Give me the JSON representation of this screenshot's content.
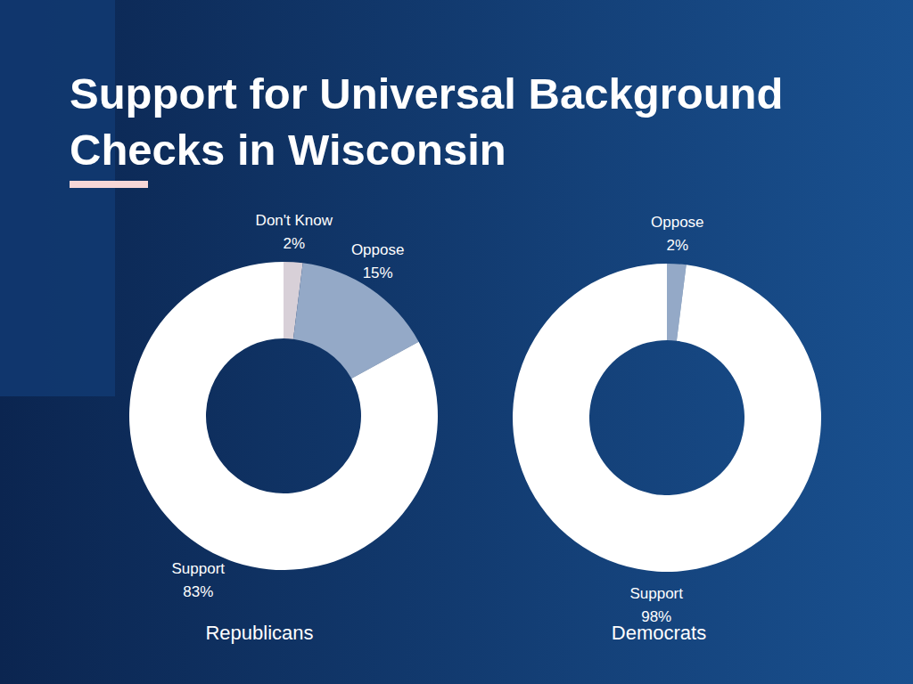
{
  "title": "Support for Universal Background Checks in Wisconsin",
  "chart_data": [
    {
      "type": "pie",
      "title": "Republicans",
      "categories": [
        "Don't Know",
        "Oppose",
        "Support"
      ],
      "values": [
        2,
        15,
        83
      ],
      "value_labels": [
        "2%",
        "15%",
        "83%"
      ],
      "colors": [
        "#d8d0d8",
        "#94a9c7",
        "#ffffff"
      ],
      "data_labels": true
    },
    {
      "type": "pie",
      "title": "Democrats",
      "categories": [
        "Oppose",
        "Support"
      ],
      "values": [
        2,
        98
      ],
      "value_labels": [
        "2%",
        "98%"
      ],
      "colors": [
        "#94a9c7",
        "#ffffff"
      ],
      "data_labels": true
    }
  ]
}
